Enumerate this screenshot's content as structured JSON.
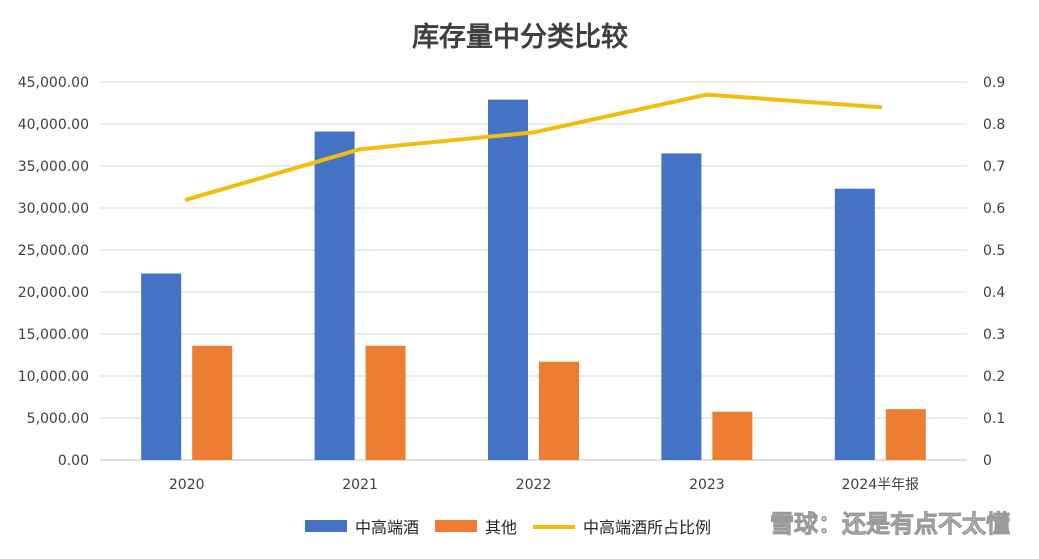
{
  "chart_data": {
    "type": "bar",
    "title": "库存量中分类比较",
    "categories": [
      "2020",
      "2021",
      "2022",
      "2023",
      "2024半年报"
    ],
    "series": [
      {
        "name": "中高端酒",
        "type": "bar",
        "axis": "left",
        "color": "#4472C4",
        "values": [
          22200,
          39100,
          42900,
          36500,
          32300
        ]
      },
      {
        "name": "其他",
        "type": "bar",
        "axis": "left",
        "color": "#ED7D31",
        "values": [
          13600,
          13600,
          11700,
          5750,
          6050
        ]
      },
      {
        "name": "中高端酒所占比例",
        "type": "line",
        "axis": "right",
        "color": "#F2BE0D",
        "values": [
          0.62,
          0.74,
          0.78,
          0.87,
          0.84
        ]
      }
    ],
    "ylim_left": [
      0,
      45000
    ],
    "ylim_right": [
      0,
      0.9
    ],
    "yticks_left": [
      "0.00",
      "5,000.00",
      "10,000.00",
      "15,000.00",
      "20,000.00",
      "25,000.00",
      "30,000.00",
      "35,000.00",
      "40,000.00",
      "45,000.00"
    ],
    "yticks_right": [
      "0",
      "0.1",
      "0.2",
      "0.3",
      "0.4",
      "0.5",
      "0.6",
      "0.7",
      "0.8",
      "0.9"
    ],
    "grid": true,
    "legend_position": "bottom-center"
  },
  "watermark": "雪球：还是有点不太懂"
}
